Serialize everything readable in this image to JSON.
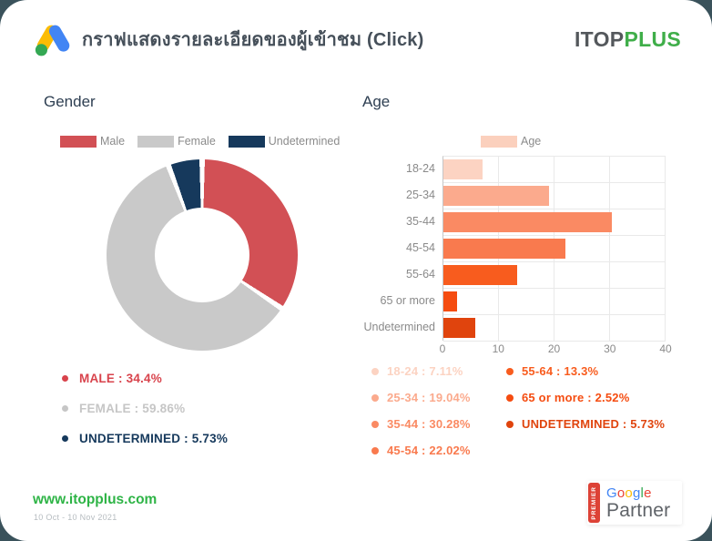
{
  "page": {
    "background_color": "#3a525b",
    "card_color": "#ffffff"
  },
  "header": {
    "icon": "google-ads-icon",
    "title": "กราฟแสดงรายละเอียดของผู้เข้าชม (Click)",
    "brand_part1": "ITOP",
    "brand_part2": "PLUS",
    "brand_color1": "#54585c",
    "brand_color2": "#3fae49"
  },
  "gender": {
    "title": "Gender",
    "legend": [
      {
        "label": "Male",
        "color": "#d25055"
      },
      {
        "label": "Female",
        "color": "#c9c9c9"
      },
      {
        "label": "Undetermined",
        "color": "#16395c"
      }
    ],
    "stats": [
      {
        "label": "MALE",
        "value": "34.4%",
        "color": "#d8434c"
      },
      {
        "label": "FEMALE",
        "value": "59.86%",
        "color": "#c6c6c6"
      },
      {
        "label": "UNDETERMINED",
        "value": "5.73%",
        "color": "#16395c"
      }
    ]
  },
  "age": {
    "title": "Age",
    "legend_label": "Age",
    "legend_color": "#fbd0bd",
    "stats": [
      {
        "label": "18-24",
        "value": "7.11%",
        "color": "#fcd3c2",
        "column": "left"
      },
      {
        "label": "25-34",
        "value": "19.04%",
        "color": "#fbaa8d",
        "column": "left"
      },
      {
        "label": "35-44",
        "value": "30.28%",
        "color": "#fa8a63",
        "column": "left"
      },
      {
        "label": "45-54",
        "value": "22.02%",
        "color": "#f97a4e",
        "column": "left"
      },
      {
        "label": "55-64",
        "value": "13.3%",
        "color": "#f85c1e",
        "column": "right"
      },
      {
        "label": "65 or more",
        "value": "2.52%",
        "color": "#f54c10",
        "column": "right"
      },
      {
        "label": "UNDETERMINED",
        "value": "5.73%",
        "color": "#e0440d",
        "column": "right"
      }
    ]
  },
  "chart_data": [
    {
      "type": "pie",
      "title": "Gender",
      "donut": true,
      "labels": [
        "Male",
        "Female",
        "Undetermined"
      ],
      "values": [
        34.4,
        59.86,
        5.73
      ],
      "colors": [
        "#d25055",
        "#c9c9c9",
        "#16395c"
      ],
      "legend_position": "top",
      "start_angle_deg": 0,
      "direction": "clockwise"
    },
    {
      "type": "bar",
      "title": "Age",
      "orientation": "horizontal",
      "categories": [
        "18-24",
        "25-34",
        "35-44",
        "45-54",
        "55-64",
        "65 or more",
        "Undetermined"
      ],
      "values": [
        7.11,
        19.04,
        30.28,
        22.02,
        13.3,
        2.52,
        5.73
      ],
      "colors": [
        "#fcd3c2",
        "#fbaa8d",
        "#fa8a63",
        "#f97a4e",
        "#f85c1e",
        "#f54c10",
        "#e0440d"
      ],
      "xlim": [
        0,
        40
      ],
      "xticks": [
        0,
        10,
        20,
        30,
        40
      ],
      "grid": true,
      "legend": [
        "Age"
      ]
    }
  ],
  "footer": {
    "website": "www.itopplus.com",
    "date_range": "10 Oct - 10 Nov 2021",
    "badge": {
      "strip_label": "PREMIER",
      "line1": "Google",
      "line2": "Partner",
      "google_letter_colors": [
        "#4285f4",
        "#ea4335",
        "#fbbc05",
        "#4285f4",
        "#34a853",
        "#ea4335"
      ]
    }
  }
}
